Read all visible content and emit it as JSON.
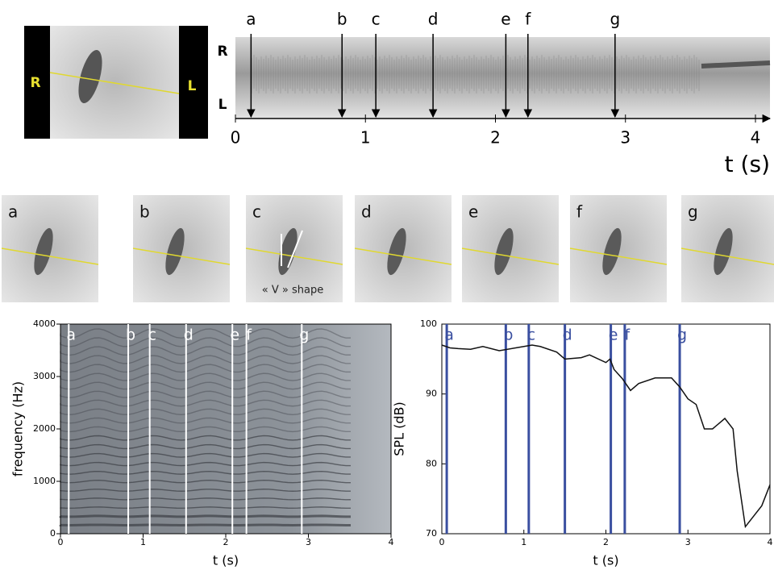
{
  "endoscope": {
    "labels": [
      "R",
      "L"
    ]
  },
  "frames": {
    "labels": [
      "a",
      "b",
      "c",
      "d",
      "e",
      "f",
      "g"
    ],
    "annotation": "« V » shape"
  },
  "chart_data": [
    {
      "type": "kymogram",
      "side_labels": [
        "R",
        "L"
      ],
      "xlabel": "t (s)",
      "xlim": [
        0,
        4
      ],
      "xticks": [
        0,
        1,
        2,
        3,
        4
      ],
      "event_labels": [
        "a",
        "b",
        "c",
        "d",
        "e",
        "f",
        "g"
      ],
      "event_x": [
        0.12,
        0.82,
        1.08,
        1.52,
        2.08,
        2.25,
        2.92
      ]
    },
    {
      "type": "spectrogram",
      "ylabel": "frequency (Hz)",
      "xlabel": "t (s)",
      "xlim": [
        0,
        4
      ],
      "ylim": [
        0,
        4000
      ],
      "xticks": [
        0,
        1,
        2,
        3,
        4
      ],
      "yticks": [
        0,
        1000,
        2000,
        3000,
        4000
      ],
      "event_labels": [
        "a",
        "b",
        "c",
        "d",
        "e",
        "f",
        "g"
      ],
      "event_x": [
        0.1,
        0.82,
        1.08,
        1.52,
        2.08,
        2.25,
        2.92
      ],
      "event_color": "#ffffff"
    },
    {
      "type": "line",
      "ylabel": "SPL (dB)",
      "xlabel": "t (s)",
      "xlim": [
        0,
        4
      ],
      "ylim": [
        70,
        100
      ],
      "xticks": [
        0,
        1,
        2,
        3,
        4
      ],
      "yticks": [
        70,
        80,
        90,
        100
      ],
      "x": [
        0,
        0.1,
        0.2,
        0.35,
        0.5,
        0.7,
        0.9,
        1.1,
        1.2,
        1.4,
        1.5,
        1.7,
        1.8,
        2.0,
        2.05,
        2.1,
        2.2,
        2.3,
        2.4,
        2.6,
        2.8,
        2.9,
        3.0,
        3.1,
        3.2,
        3.3,
        3.45,
        3.55,
        3.6,
        3.7,
        3.8,
        3.9,
        4.0
      ],
      "values": [
        97,
        96.6,
        96.5,
        96.4,
        96.8,
        96.2,
        96.6,
        97,
        96.8,
        96,
        95,
        95.2,
        95.6,
        94.5,
        95,
        93.5,
        92.2,
        90.5,
        91.5,
        92.3,
        92.3,
        91,
        89.3,
        88.5,
        85,
        85,
        86.5,
        85,
        79,
        71,
        72.5,
        74,
        77
      ],
      "color": "#111111",
      "event_labels": [
        "a",
        "b",
        "c",
        "d",
        "e",
        "f",
        "g"
      ],
      "event_x": [
        0.06,
        0.78,
        1.06,
        1.5,
        2.06,
        2.23,
        2.9
      ],
      "event_color": "#3a4fa0"
    }
  ]
}
